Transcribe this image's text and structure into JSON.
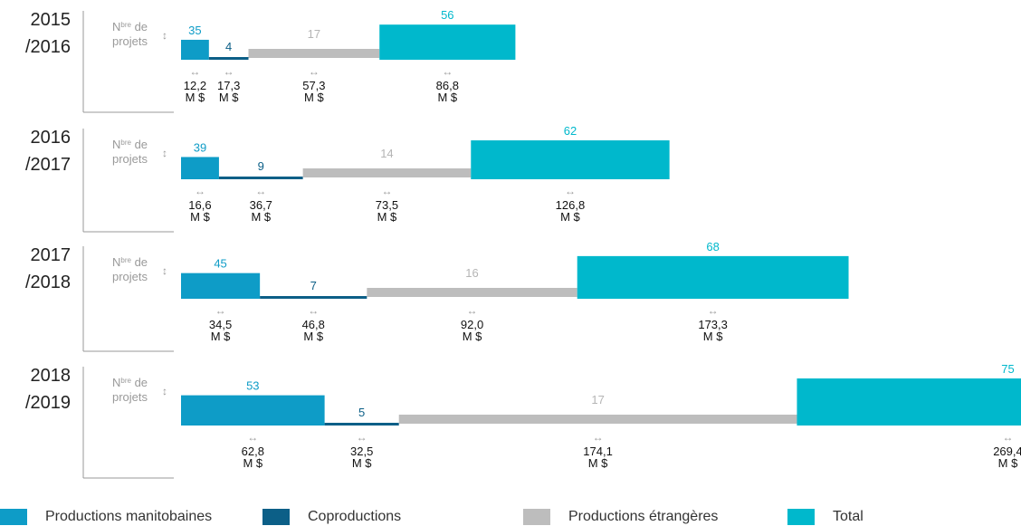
{
  "chart_data": {
    "type": "bar",
    "count_label": "Nbre de projets",
    "count_label_parts": {
      "n": "N",
      "sup": "bre",
      "de": "de",
      "projets": "projets"
    },
    "unit_symbol": "↔",
    "money_unit": "M $",
    "series": [
      {
        "name": "Productions manitobaines",
        "color": "#0e9cc7",
        "count_color": "#0e9cc7"
      },
      {
        "name": "Coproductions",
        "color": "#0c5f87",
        "count_color": "#0c5f87"
      },
      {
        "name": "Productions étrangères",
        "color": "#bdbdbd",
        "count_color": "#b5b5b5"
      },
      {
        "name": "Total",
        "color": "#00b8cc",
        "count_color": "#00b8cc"
      }
    ],
    "years": [
      {
        "label_line1": "2015",
        "label_line2": "/2016",
        "counts": [
          35,
          4,
          17,
          56
        ],
        "values": [
          "12,2",
          "17,3",
          "57,3",
          "86,8"
        ]
      },
      {
        "label_line1": "2016",
        "label_line2": "/2017",
        "counts": [
          39,
          9,
          14,
          62
        ],
        "values": [
          "16,6",
          "36,7",
          "73,5",
          "126,8"
        ]
      },
      {
        "label_line1": "2017",
        "label_line2": "/2018",
        "counts": [
          45,
          7,
          16,
          68
        ],
        "values": [
          "34,5",
          "46,8",
          "92,0",
          "173,3"
        ]
      },
      {
        "label_line1": "2018",
        "label_line2": "/2019",
        "counts": [
          53,
          5,
          17,
          75
        ],
        "values": [
          "62,8",
          "32,5",
          "174,1",
          "269,4"
        ]
      }
    ]
  },
  "legend": {
    "items": [
      "Productions manitobaines",
      "Coproductions",
      "Productions étrangères",
      "Total"
    ]
  }
}
